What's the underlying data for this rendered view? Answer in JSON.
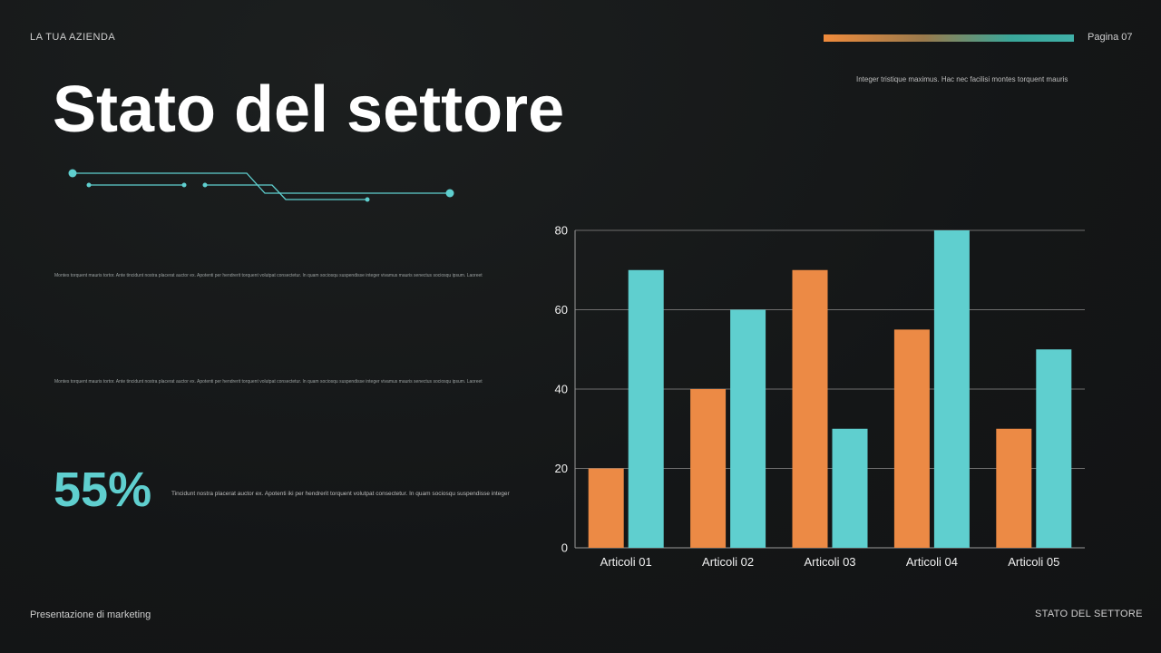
{
  "header": {
    "company": "LA TUA AZIENDA",
    "page": "Pagina 07",
    "tagline": "Integer tristique maximus. Hac nec facilisi montes torquent mauris"
  },
  "title": "Stato del settore",
  "paragraphs": [
    "Montes torquent mauris tortor. Ante tincidunt nostra placerat auctor ex. Apotenti per hendrerit torquent volutpat consectetur. In quam sociosqu suspendisse integer vivamus mauris senectus sociosqu ipsum. Laoreet",
    "Montes torquent mauris tortor. Ante tincidunt nostra placerat auctor ex. Apotenti per hendrerit torquent volutpat consectetur. In quam sociosqu suspendisse integer vivamus mauris senectus sociosqu ipsum. Laoreet"
  ],
  "stat": {
    "value": "55%",
    "text": "Tincidunt nostra placerat auctor ex. Apotenti iki per hendrerit torquent volutpat consectetur. In quam sociosqu suspendisse integer"
  },
  "footer": {
    "left": "Presentazione di marketing",
    "right": "STATO DEL SETTORE"
  },
  "colors": {
    "accent_orange": "#ec8a45",
    "accent_teal": "#5fcfcf"
  },
  "chart_data": {
    "type": "bar",
    "categories": [
      "Articoli 01",
      "Articoli 02",
      "Articoli 03",
      "Articoli 04",
      "Articoli 05"
    ],
    "series": [
      {
        "values": [
          20,
          40,
          70,
          55,
          30
        ],
        "color": "#ec8a45"
      },
      {
        "values": [
          70,
          60,
          30,
          80,
          50
        ],
        "color": "#5fcfcf"
      }
    ],
    "yticks": [
      0,
      20,
      40,
      60,
      80
    ],
    "ylim": [
      0,
      80
    ],
    "grid": true,
    "legend": "none"
  }
}
